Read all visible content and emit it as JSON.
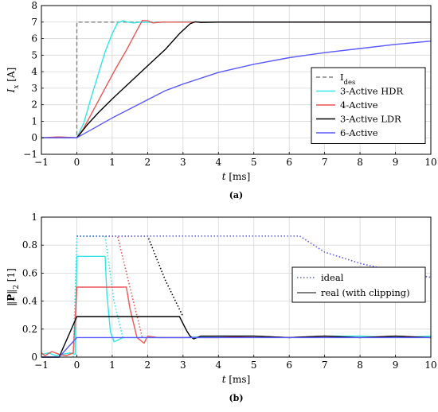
{
  "colors": {
    "des": "#808080",
    "hdr": "#33e6e6",
    "four": "#ee5555",
    "ldr": "#000000",
    "six": "#5959ff",
    "grid": "#d6d6d6"
  },
  "chart_data": [
    {
      "type": "line",
      "panel": "(a)",
      "xlabel": "t [ms]",
      "ylabel": "I_x [A]",
      "ylabel_main": "I",
      "ylabel_sub": "x",
      "ylabel_unit": " [A]",
      "xlim": [
        -1,
        10
      ],
      "ylim": [
        -1,
        8
      ],
      "xticks": [
        "−1",
        "0",
        "1",
        "2",
        "3",
        "4",
        "5",
        "6",
        "7",
        "8",
        "9",
        "10"
      ],
      "yticks": [
        "−1",
        "0",
        "1",
        "2",
        "3",
        "4",
        "5",
        "6",
        "7",
        "8"
      ],
      "grid": true,
      "legend_position": "bottom-right",
      "series": [
        {
          "name": "I_des",
          "name_main": "I",
          "name_sub": "des",
          "style": "dashed",
          "color_key": "des",
          "x": [
            -1,
            0,
            0,
            10
          ],
          "y": [
            0,
            0,
            7,
            7
          ]
        },
        {
          "name": "3-Active HDR",
          "style": "solid",
          "color_key": "hdr",
          "x": [
            -1,
            -0.5,
            0,
            0.2,
            0.4,
            0.6,
            0.8,
            1.0,
            1.15,
            1.3,
            1.45,
            1.6,
            1.8,
            2.2,
            3,
            4,
            5,
            6,
            7,
            8,
            9,
            10
          ],
          "y": [
            0,
            0.05,
            0,
            0.9,
            2.4,
            3.8,
            5.2,
            6.3,
            6.95,
            7.08,
            7.0,
            6.95,
            7.0,
            6.98,
            7.02,
            7.0,
            7.0,
            7.0,
            7.0,
            7.0,
            7.0,
            7.0
          ]
        },
        {
          "name": "4-Active",
          "style": "solid",
          "color_key": "four",
          "x": [
            -1,
            -0.5,
            0,
            0.2,
            0.5,
            0.8,
            1.1,
            1.4,
            1.65,
            1.85,
            2.0,
            2.15,
            2.4,
            3,
            4,
            5,
            6,
            7,
            8,
            9,
            10
          ],
          "y": [
            0,
            0.05,
            0,
            0.6,
            1.8,
            3.0,
            4.2,
            5.3,
            6.3,
            7.1,
            7.08,
            6.95,
            7.0,
            7.0,
            7.0,
            7.0,
            7.0,
            7.0,
            7.0,
            7.0,
            7.0
          ]
        },
        {
          "name": "3-Active LDR",
          "style": "solid",
          "color_key": "ldr",
          "x": [
            -1,
            -0.5,
            0,
            0.1,
            0.3,
            0.6,
            1.0,
            1.5,
            2.0,
            2.5,
            2.9,
            3.2,
            3.35,
            3.5,
            4,
            5,
            6,
            7,
            8,
            9,
            10
          ],
          "y": [
            0,
            0,
            0,
            0.25,
            0.8,
            1.5,
            2.35,
            3.35,
            4.35,
            5.35,
            6.3,
            6.9,
            7.02,
            6.98,
            7.0,
            7.0,
            7.0,
            7.0,
            7.0,
            7.0,
            7.0
          ]
        },
        {
          "name": "6-Active",
          "style": "solid",
          "color_key": "six",
          "x": [
            -1,
            -0.5,
            0,
            0.5,
            1,
            1.5,
            2,
            2.5,
            3,
            4,
            5,
            6,
            7,
            8,
            9,
            10
          ],
          "y": [
            0,
            0,
            0,
            0.6,
            1.2,
            1.75,
            2.3,
            2.85,
            3.25,
            3.95,
            4.45,
            4.85,
            5.15,
            5.4,
            5.65,
            5.85
          ]
        }
      ]
    },
    {
      "type": "line",
      "panel": "(b)",
      "xlabel": "t [ms]",
      "ylabel": "‖P‖₂ [1]",
      "xlim": [
        -1,
        10
      ],
      "ylim": [
        0,
        1
      ],
      "xticks": [
        "−1",
        "0",
        "1",
        "2",
        "3",
        "4",
        "5",
        "6",
        "7",
        "8",
        "9",
        "10"
      ],
      "yticks": [
        "0",
        "0.2",
        "0.4",
        "0.6",
        "0.8",
        "1"
      ],
      "grid": true,
      "legend_position": "center-right",
      "legend": [
        {
          "name": "ideal",
          "style": "dotted"
        },
        {
          "name": "real (with clipping)",
          "style": "solid"
        }
      ],
      "series": [
        {
          "color_key": "hdr",
          "style": "dotted",
          "x": [
            -0.1,
            0,
            0.8,
            1.05,
            1.3
          ],
          "y": [
            0.0,
            0.865,
            0.865,
            0.4,
            0.14
          ]
        },
        {
          "color_key": "four",
          "style": "dotted",
          "x": [
            0,
            1.15,
            1.5,
            1.85
          ],
          "y": [
            0.865,
            0.865,
            0.5,
            0.14
          ]
        },
        {
          "color_key": "ldr",
          "style": "dotted",
          "x": [
            0,
            2.0,
            2.5,
            3.0
          ],
          "y": [
            0.865,
            0.865,
            0.55,
            0.29
          ]
        },
        {
          "color_key": "six",
          "style": "dotted",
          "x": [
            0,
            6.3,
            7.0,
            8.0,
            9.0,
            10.0
          ],
          "y": [
            0.865,
            0.865,
            0.75,
            0.67,
            0.61,
            0.57
          ]
        },
        {
          "color_key": "hdr",
          "style": "solid",
          "x": [
            -1,
            -0.8,
            -0.6,
            -0.4,
            -0.2,
            -0.05,
            0,
            0.8,
            0.85,
            0.95,
            1.05,
            1.15,
            1.3,
            1.5,
            2,
            3,
            4,
            5,
            6,
            7,
            8,
            9,
            10
          ],
          "y": [
            0.02,
            0.03,
            0.01,
            0.02,
            0.03,
            0.02,
            0.72,
            0.72,
            0.45,
            0.18,
            0.11,
            0.12,
            0.14,
            0.14,
            0.14,
            0.14,
            0.15,
            0.15,
            0.14,
            0.15,
            0.15,
            0.14,
            0.15
          ]
        },
        {
          "color_key": "four",
          "style": "solid",
          "x": [
            -1,
            -0.9,
            -0.7,
            -0.5,
            -0.3,
            -0.1,
            0,
            1.4,
            1.5,
            1.7,
            1.8,
            1.9,
            2.0,
            2.3,
            3,
            4,
            5,
            6,
            7,
            8,
            9,
            10
          ],
          "y": [
            0.03,
            0.01,
            0.04,
            0.02,
            0.01,
            0.03,
            0.5,
            0.5,
            0.35,
            0.14,
            0.12,
            0.1,
            0.15,
            0.14,
            0.14,
            0.14,
            0.15,
            0.14,
            0.15,
            0.14,
            0.15,
            0.14
          ]
        },
        {
          "color_key": "ldr",
          "style": "solid",
          "x": [
            -1,
            -0.5,
            0,
            2.9,
            3.0,
            3.1,
            3.2,
            3.3,
            3.5,
            4,
            5,
            6,
            7,
            8,
            9,
            10
          ],
          "y": [
            0.0,
            0.0,
            0.29,
            0.29,
            0.24,
            0.19,
            0.15,
            0.13,
            0.15,
            0.15,
            0.15,
            0.14,
            0.15,
            0.14,
            0.15,
            0.14
          ]
        },
        {
          "color_key": "six",
          "style": "solid",
          "x": [
            -1,
            -0.5,
            0,
            10
          ],
          "y": [
            0.0,
            0.0,
            0.14,
            0.14
          ]
        }
      ]
    }
  ]
}
